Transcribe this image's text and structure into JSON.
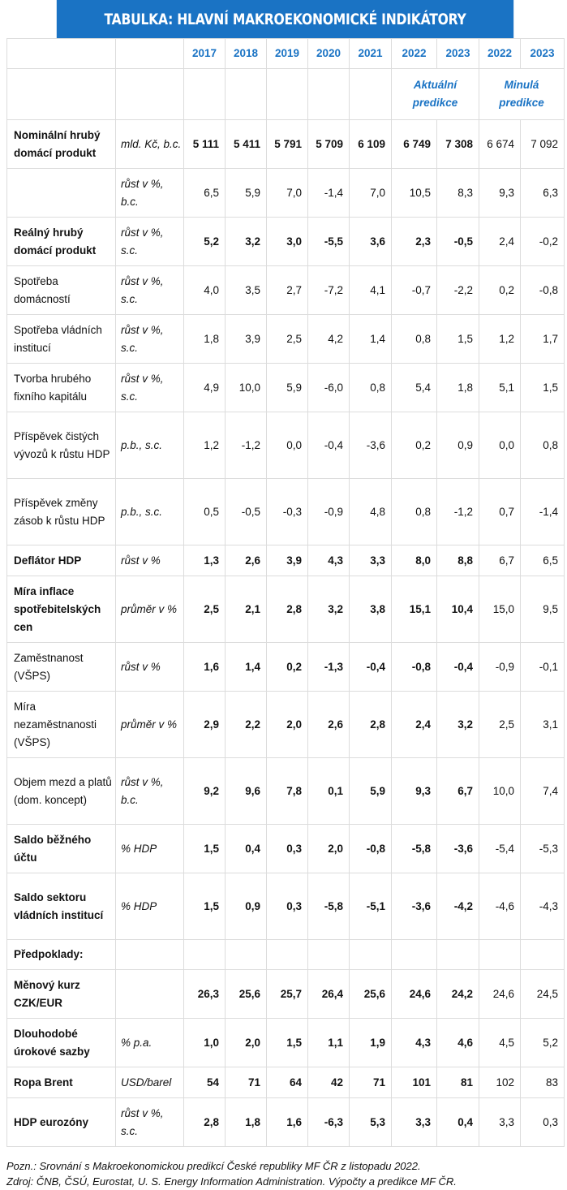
{
  "title": "TABULKA: HLAVNÍ MAKROEKONOMICKÉ INDIKÁTORY",
  "years": [
    "2017",
    "2018",
    "2019",
    "2020",
    "2021",
    "2022",
    "2023",
    "2022",
    "2023"
  ],
  "predictions": {
    "current": "Aktuální predikce",
    "previous": "Minulá predikce"
  },
  "rows": [
    {
      "label": "Nominální hrubý domácí produkt",
      "unit": "mld. Kč, b.c.",
      "bold": true,
      "values": [
        "5 111",
        "5 411",
        "5 791",
        "5 709",
        "6 109",
        "6 749",
        "7 308",
        "6 674",
        "7 092"
      ]
    },
    {
      "label": "",
      "unit": "růst v %, b.c.",
      "bold": false,
      "values": [
        "6,5",
        "5,9",
        "7,0",
        "-1,4",
        "7,0",
        "10,5",
        "8,3",
        "9,3",
        "6,3"
      ]
    },
    {
      "label": "Reálný hrubý domácí produkt",
      "unit": "růst v %, s.c.",
      "bold": true,
      "values": [
        "5,2",
        "3,2",
        "3,0",
        "-5,5",
        "3,6",
        "2,3",
        "-0,5",
        "2,4",
        "-0,2"
      ]
    },
    {
      "label": "Spotřeba domácností",
      "unit": "růst v %, s.c.",
      "bold": false,
      "values": [
        "4,0",
        "3,5",
        "2,7",
        "-7,2",
        "4,1",
        "-0,7",
        "-2,2",
        "0,2",
        "-0,8"
      ]
    },
    {
      "label": "Spotřeba vládních institucí",
      "unit": "růst v %, s.c.",
      "bold": false,
      "values": [
        "1,8",
        "3,9",
        "2,5",
        "4,2",
        "1,4",
        "0,8",
        "1,5",
        "1,2",
        "1,7"
      ]
    },
    {
      "label": "Tvorba hrubého fixního kapitálu",
      "unit": "růst v %, s.c.",
      "bold": false,
      "values": [
        "4,9",
        "10,0",
        "5,9",
        "-6,0",
        "0,8",
        "5,4",
        "1,8",
        "5,1",
        "1,5"
      ]
    },
    {
      "label": "Příspěvek čistých vývozů k růstu HDP",
      "unit": "p.b., s.c.",
      "bold": false,
      "values": [
        "1,2",
        "-1,2",
        "0,0",
        "-0,4",
        "-3,6",
        "0,2",
        "0,9",
        "0,0",
        "0,8"
      ]
    },
    {
      "label": "Příspěvek změny zásob k růstu HDP",
      "unit": "p.b., s.c.",
      "bold": false,
      "values": [
        "0,5",
        "-0,5",
        "-0,3",
        "-0,9",
        "4,8",
        "0,8",
        "-1,2",
        "0,7",
        "-1,4"
      ]
    },
    {
      "label": "Deflátor HDP",
      "unit": "růst v %",
      "bold": true,
      "values": [
        "1,3",
        "2,6",
        "3,9",
        "4,3",
        "3,3",
        "8,0",
        "8,8",
        "6,7",
        "6,5"
      ]
    },
    {
      "label": "Míra inflace spotřebitelských cen",
      "unit": "průměr v %",
      "bold": true,
      "values": [
        "2,5",
        "2,1",
        "2,8",
        "3,2",
        "3,8",
        "15,1",
        "10,4",
        "15,0",
        "9,5"
      ]
    },
    {
      "label": "Zaměstnanost (VŠPS)",
      "unit": "růst v %",
      "bold": true,
      "labelBold": false,
      "values": [
        "1,6",
        "1,4",
        "0,2",
        "-1,3",
        "-0,4",
        "-0,8",
        "-0,4",
        "-0,9",
        "-0,1"
      ]
    },
    {
      "label": "Míra nezaměstnanosti (VŠPS)",
      "unit": "průměr v %",
      "bold": true,
      "labelBold": false,
      "values": [
        "2,9",
        "2,2",
        "2,0",
        "2,6",
        "2,8",
        "2,4",
        "3,2",
        "2,5",
        "3,1"
      ]
    },
    {
      "label": "Objem mezd a platů (dom. koncept)",
      "unit": "růst v %, b.c.",
      "bold": true,
      "labelBold": false,
      "values": [
        "9,2",
        "9,6",
        "7,8",
        "0,1",
        "5,9",
        "9,3",
        "6,7",
        "10,0",
        "7,4"
      ]
    },
    {
      "label": "Saldo běžného účtu",
      "unit": "% HDP",
      "bold": true,
      "values": [
        "1,5",
        "0,4",
        "0,3",
        "2,0",
        "-0,8",
        "-5,8",
        "-3,6",
        "-5,4",
        "-5,3"
      ]
    },
    {
      "label": "Saldo sektoru vládních institucí",
      "unit": "% HDP",
      "bold": true,
      "values": [
        "1,5",
        "0,9",
        "0,3",
        "-5,8",
        "-5,1",
        "-3,6",
        "-4,2",
        "-4,6",
        "-4,3"
      ]
    }
  ],
  "assumptions_label": "Předpoklady:",
  "assumptions": [
    {
      "label": "Měnový kurz CZK/EUR",
      "unit": "",
      "values": [
        "26,3",
        "25,6",
        "25,7",
        "26,4",
        "25,6",
        "24,6",
        "24,2",
        "24,6",
        "24,5"
      ]
    },
    {
      "label": "Dlouhodobé úrokové sazby",
      "unit": "% p.a.",
      "values": [
        "1,0",
        "2,0",
        "1,5",
        "1,1",
        "1,9",
        "4,3",
        "4,6",
        "4,5",
        "5,2"
      ]
    },
    {
      "label": "Ropa Brent",
      "unit": "USD/barel",
      "values": [
        "54",
        "71",
        "64",
        "42",
        "71",
        "101",
        "81",
        "102",
        "83"
      ]
    },
    {
      "label": "HDP eurozóny",
      "unit": "růst v %, s.c.",
      "values": [
        "2,8",
        "1,8",
        "1,6",
        "-6,3",
        "5,3",
        "3,3",
        "0,4",
        "3,3",
        "0,3"
      ]
    }
  ],
  "notes": {
    "note": "Pozn.: Srovnání s Makroekonomickou predikcí České republiky MF ČR z listopadu 2022.",
    "source": "Zdroj: ČNB, ČSÚ, Eurostat, U. S. Energy Information Administration. Výpočty a predikce MF ČR."
  }
}
